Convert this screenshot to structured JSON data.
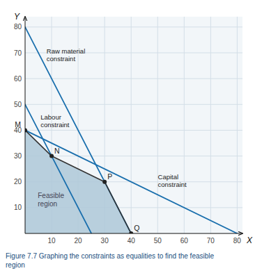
{
  "chart_data": {
    "type": "line",
    "xlabel": "X",
    "ylabel": "Y",
    "xlim": [
      0,
      82
    ],
    "ylim": [
      0,
      84
    ],
    "xticks": [
      10,
      20,
      30,
      40,
      50,
      60,
      70,
      80
    ],
    "yticks": [
      10,
      20,
      30,
      40,
      50,
      60,
      70,
      80
    ],
    "grid": true,
    "series": [
      {
        "type": "area",
        "name": "Feasible\nregion",
        "color": "#aec8d8",
        "x": [
          0,
          0,
          10,
          30,
          40
        ],
        "values": [
          0,
          40,
          30,
          20,
          0
        ]
      },
      {
        "type": "line",
        "name": "Raw material\nconstraint",
        "color": "#1a6fad",
        "x": [
          0,
          40
        ],
        "values": [
          80,
          0
        ]
      },
      {
        "type": "line",
        "name": "Labour\nconstraint",
        "color": "#1a6fad",
        "x": [
          0,
          25
        ],
        "values": [
          50,
          0
        ]
      },
      {
        "type": "line",
        "name": "Capital\nconstraint",
        "color": "#1a6fad",
        "x": [
          0,
          80
        ],
        "values": [
          40,
          0
        ]
      },
      {
        "type": "line",
        "color": "#333333",
        "x": [
          0,
          10,
          30,
          40
        ],
        "values": [
          40,
          30,
          20,
          0
        ]
      },
      {
        "type": "scatter",
        "color": "#222222",
        "x": [
          0,
          10,
          30,
          40
        ],
        "values": [
          40,
          30,
          20,
          0
        ],
        "labels": [
          "M",
          "N",
          "P",
          "Q"
        ]
      }
    ],
    "caption": "Figure 7.7  Graphing the constraints as equalities to find the feasible\nregion"
  }
}
